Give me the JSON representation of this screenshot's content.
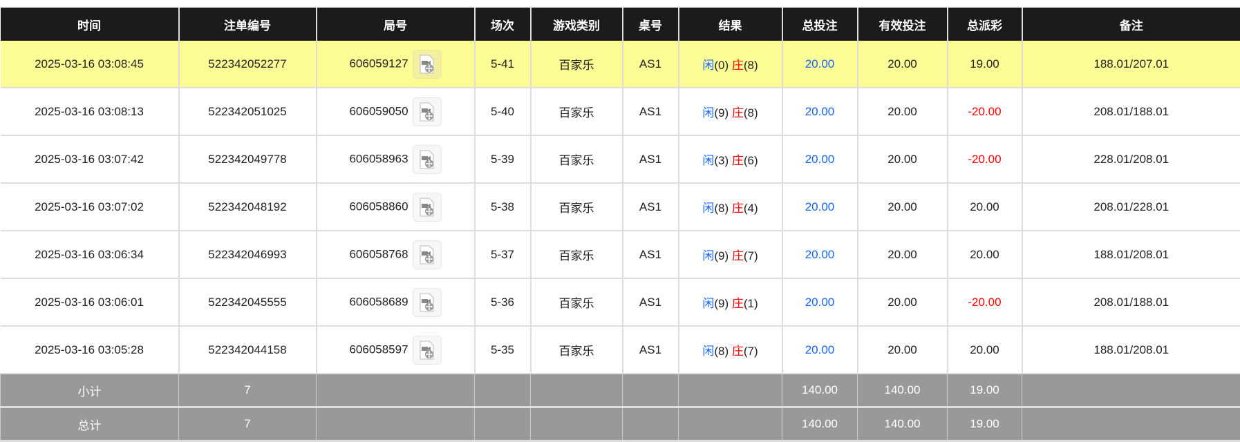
{
  "headers": [
    "时间",
    "注单编号",
    "局号",
    "场次",
    "游戏类别",
    "桌号",
    "结果",
    "总投注",
    "有效投注",
    "总派彩",
    "备注"
  ],
  "rows": [
    {
      "time": "2025-03-16 03:08:45",
      "bet_id": "522342052277",
      "round": "606059127",
      "shoe": "5-41",
      "game": "百家乐",
      "table": "AS1",
      "player_label": "闲",
      "player": "(0)",
      "banker_label": "庄",
      "banker": "(8)",
      "total_bet": "20.00",
      "valid_bet": "20.00",
      "payout": "19.00",
      "note": "188.01/207.01",
      "highlight": true
    },
    {
      "time": "2025-03-16 03:08:13",
      "bet_id": "522342051025",
      "round": "606059050",
      "shoe": "5-40",
      "game": "百家乐",
      "table": "AS1",
      "player_label": "闲",
      "player": "(9)",
      "banker_label": "庄",
      "banker": "(8)",
      "total_bet": "20.00",
      "valid_bet": "20.00",
      "payout": "-20.00",
      "note": "208.01/188.01"
    },
    {
      "time": "2025-03-16 03:07:42",
      "bet_id": "522342049778",
      "round": "606058963",
      "shoe": "5-39",
      "game": "百家乐",
      "table": "AS1",
      "player_label": "闲",
      "player": "(3)",
      "banker_label": "庄",
      "banker": "(6)",
      "total_bet": "20.00",
      "valid_bet": "20.00",
      "payout": "-20.00",
      "note": "228.01/208.01"
    },
    {
      "time": "2025-03-16 03:07:02",
      "bet_id": "522342048192",
      "round": "606058860",
      "shoe": "5-38",
      "game": "百家乐",
      "table": "AS1",
      "player_label": "闲",
      "player": "(8)",
      "banker_label": "庄",
      "banker": "(4)",
      "total_bet": "20.00",
      "valid_bet": "20.00",
      "payout": "20.00",
      "note": "208.01/228.01"
    },
    {
      "time": "2025-03-16 03:06:34",
      "bet_id": "522342046993",
      "round": "606058768",
      "shoe": "5-37",
      "game": "百家乐",
      "table": "AS1",
      "player_label": "闲",
      "player": "(9)",
      "banker_label": "庄",
      "banker": "(7)",
      "total_bet": "20.00",
      "valid_bet": "20.00",
      "payout": "20.00",
      "note": "188.01/208.01"
    },
    {
      "time": "2025-03-16 03:06:01",
      "bet_id": "522342045555",
      "round": "606058689",
      "shoe": "5-36",
      "game": "百家乐",
      "table": "AS1",
      "player_label": "闲",
      "player": "(9)",
      "banker_label": "庄",
      "banker": "(1)",
      "total_bet": "20.00",
      "valid_bet": "20.00",
      "payout": "-20.00",
      "note": "208.01/188.01"
    },
    {
      "time": "2025-03-16 03:05:28",
      "bet_id": "522342044158",
      "round": "606058597",
      "shoe": "5-35",
      "game": "百家乐",
      "table": "AS1",
      "player_label": "闲",
      "player": "(8)",
      "banker_label": "庄",
      "banker": "(7)",
      "total_bet": "20.00",
      "valid_bet": "20.00",
      "payout": "20.00",
      "note": "188.01/208.01"
    }
  ],
  "subtotal": {
    "label": "小计",
    "count": "7",
    "total_bet": "140.00",
    "valid_bet": "140.00",
    "payout": "19.00"
  },
  "total": {
    "label": "总计",
    "count": "7",
    "total_bet": "140.00",
    "valid_bet": "140.00",
    "payout": "19.00"
  },
  "colors": {
    "header": "#1b1b1b",
    "highlight": "#fdfd96",
    "player": "#1565ff",
    "banker": "#ff0000",
    "negative": "#ff0000",
    "summary": "#999999"
  },
  "icons": {
    "replay": "video-replay-icon"
  }
}
